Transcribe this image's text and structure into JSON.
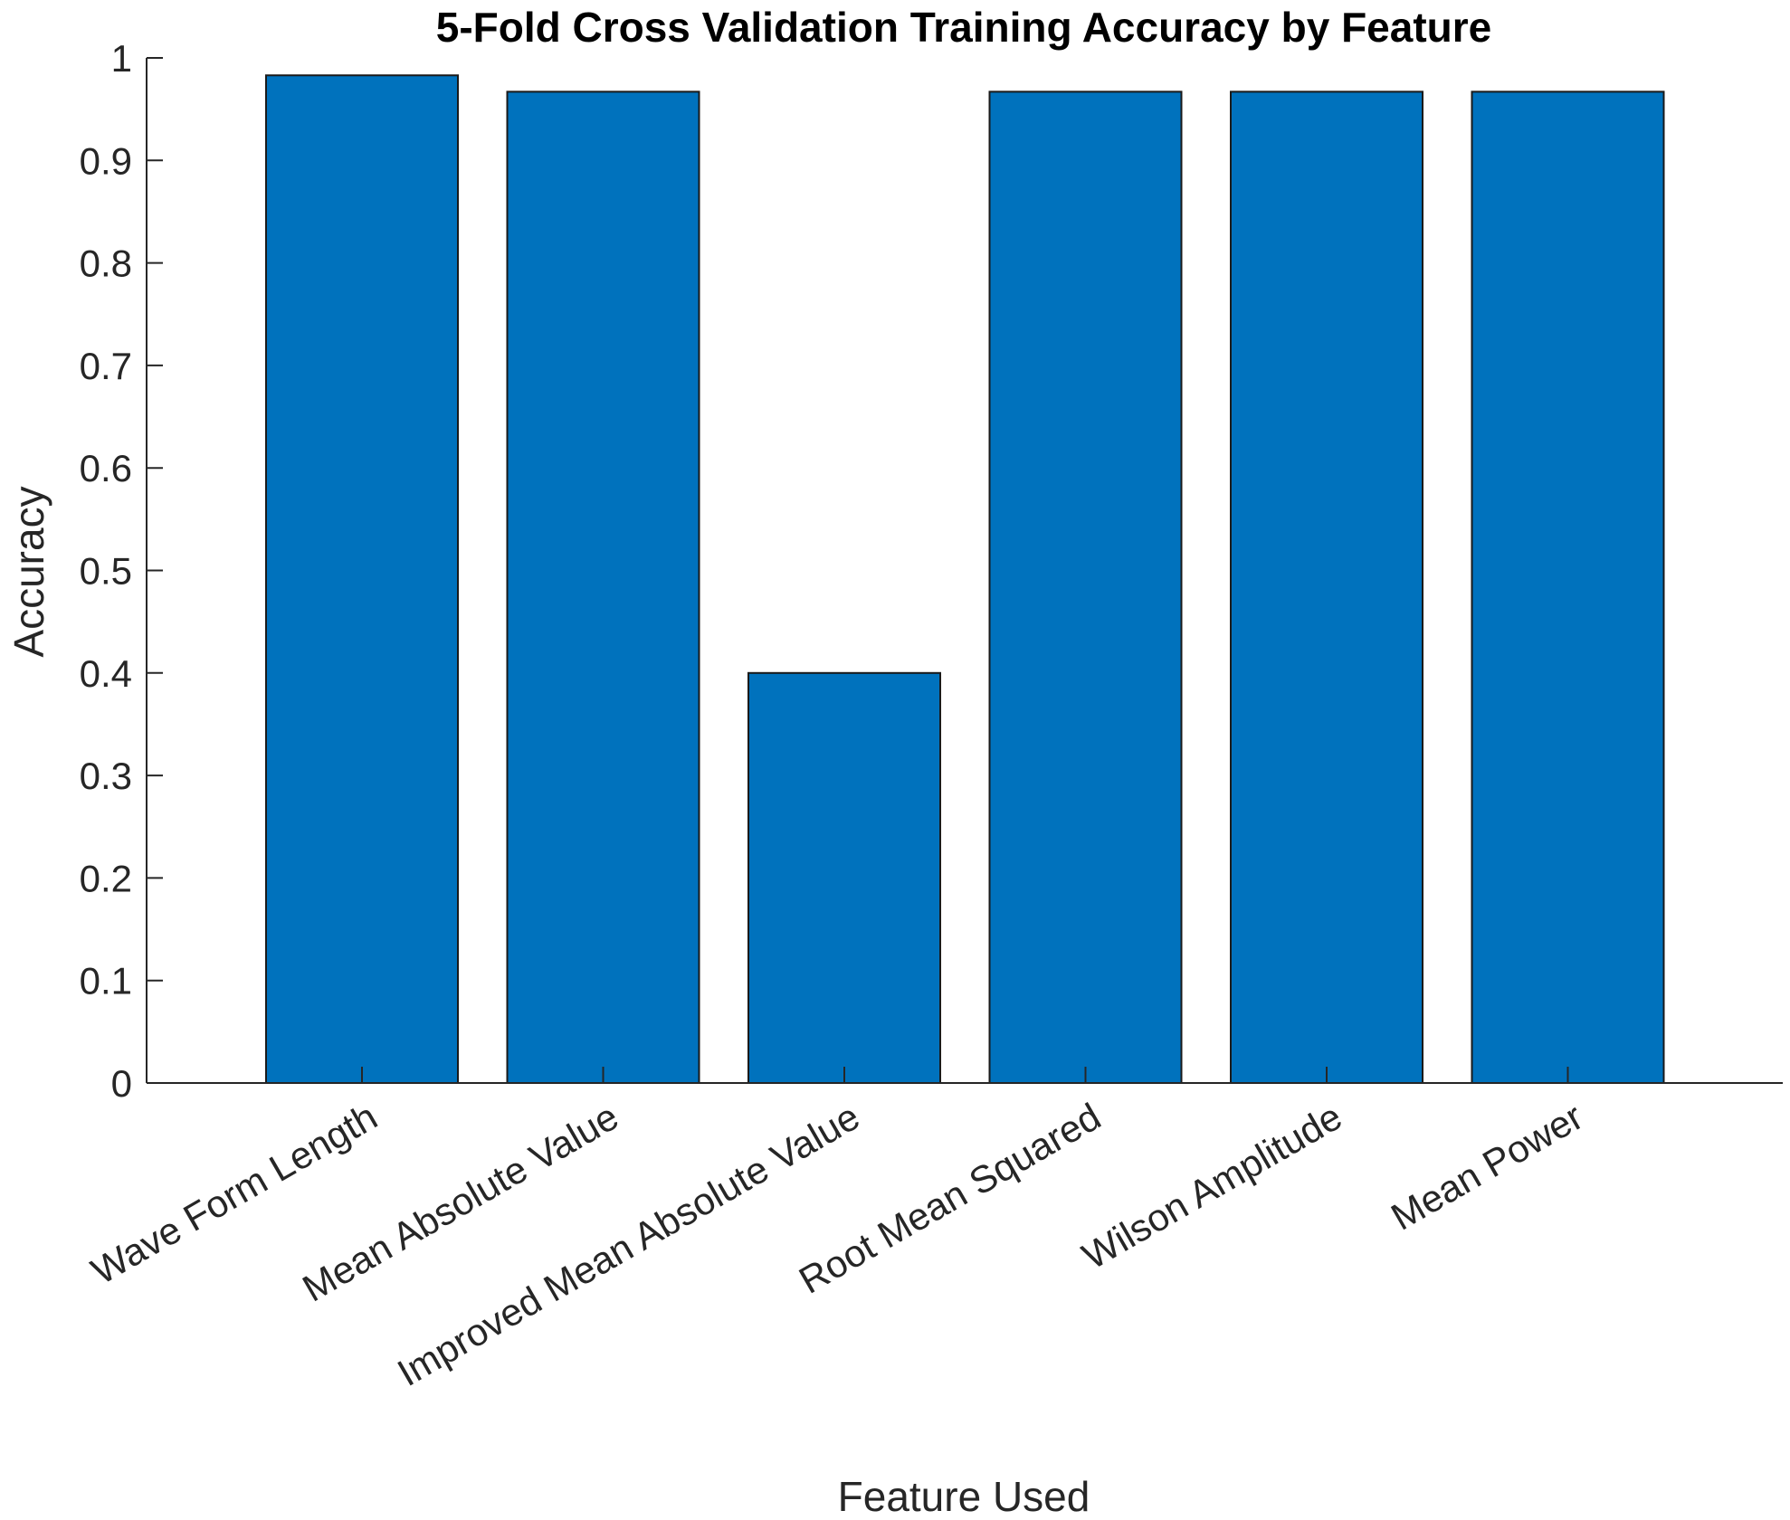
{
  "chart_data": {
    "type": "bar",
    "title": "5-Fold Cross Validation Training Accuracy by Feature",
    "xlabel": "Feature Used",
    "ylabel": "Accuracy",
    "categories": [
      "Wave Form Length",
      "Mean Absolute Value",
      "Improved Mean Absolute Value",
      "Root Mean Squared",
      "Wilson Amplitude",
      "Mean Power"
    ],
    "values": [
      0.983,
      0.967,
      0.4,
      0.967,
      0.967,
      0.967
    ],
    "ylim": [
      0,
      1
    ],
    "yticks": [
      "0",
      "0.1",
      "0.2",
      "0.3",
      "0.4",
      "0.5",
      "0.6",
      "0.7",
      "0.8",
      "0.9",
      "1"
    ],
    "grid": false,
    "bar_color": "#0072BD"
  }
}
